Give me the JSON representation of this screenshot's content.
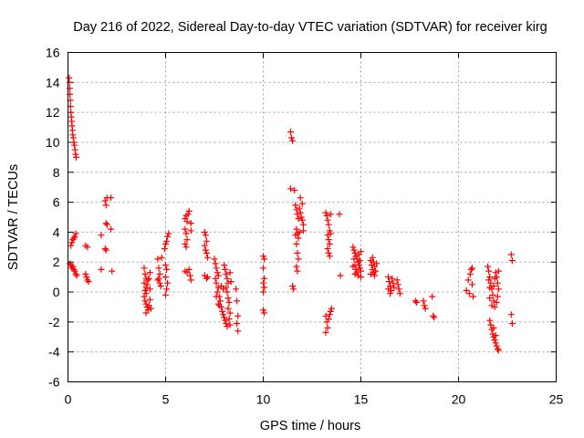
{
  "chart_data": {
    "type": "scatter",
    "title": "Day 216 of 2022, Sidereal Day-to-day VTEC variation (SDTVAR) for receiver kirg",
    "xlabel": "GPS time / hours",
    "ylabel": "SDTVAR / TECUs",
    "xlim": [
      0,
      25
    ],
    "ylim": [
      -6,
      16
    ],
    "xticks": [
      0,
      5,
      10,
      15,
      20,
      25
    ],
    "yticks": [
      -6,
      -4,
      -2,
      0,
      2,
      4,
      6,
      8,
      10,
      12,
      14,
      16
    ],
    "grid": true,
    "marker": "+",
    "color": "#ff0000",
    "series": [
      {
        "name": "SDTVAR",
        "points": [
          [
            0.05,
            14.3
          ],
          [
            0.07,
            14.0
          ],
          [
            0.09,
            13.6
          ],
          [
            0.1,
            13.2
          ],
          [
            0.12,
            12.8
          ],
          [
            0.13,
            12.4
          ],
          [
            0.15,
            12.0
          ],
          [
            0.17,
            11.7
          ],
          [
            0.19,
            11.4
          ],
          [
            0.21,
            11.1
          ],
          [
            0.23,
            10.8
          ],
          [
            0.25,
            10.5
          ],
          [
            0.27,
            10.3
          ],
          [
            0.3,
            10.0
          ],
          [
            0.33,
            9.8
          ],
          [
            0.36,
            9.5
          ],
          [
            0.39,
            9.2
          ],
          [
            0.42,
            9.0
          ],
          [
            0.15,
            3.1
          ],
          [
            0.2,
            3.3
          ],
          [
            0.25,
            3.5
          ],
          [
            0.3,
            3.6
          ],
          [
            0.35,
            3.7
          ],
          [
            0.4,
            3.9
          ],
          [
            0.1,
            1.9
          ],
          [
            0.15,
            1.8
          ],
          [
            0.2,
            1.6
          ],
          [
            0.25,
            1.7
          ],
          [
            0.3,
            1.5
          ],
          [
            0.35,
            1.4
          ],
          [
            0.4,
            1.2
          ],
          [
            0.45,
            1.1
          ],
          [
            0.9,
            3.1
          ],
          [
            1.0,
            3.0
          ],
          [
            0.9,
            1.2
          ],
          [
            0.95,
            1.0
          ],
          [
            1.0,
            0.8
          ],
          [
            1.05,
            0.7
          ],
          [
            1.7,
            3.8
          ],
          [
            1.7,
            1.5
          ],
          [
            1.9,
            6.1
          ],
          [
            1.95,
            5.8
          ],
          [
            2.0,
            6.3
          ],
          [
            1.95,
            4.6
          ],
          [
            2.0,
            4.5
          ],
          [
            1.9,
            2.9
          ],
          [
            1.95,
            2.8
          ],
          [
            2.2,
            6.3
          ],
          [
            2.2,
            4.2
          ],
          [
            2.25,
            1.4
          ],
          [
            3.9,
            1.6
          ],
          [
            3.95,
            1.2
          ],
          [
            4.0,
            0.9
          ],
          [
            3.9,
            0.6
          ],
          [
            4.0,
            0.3
          ],
          [
            3.95,
            0.1
          ],
          [
            4.0,
            -0.1
          ],
          [
            3.9,
            -0.3
          ],
          [
            4.05,
            0.5
          ],
          [
            4.1,
            0.8
          ],
          [
            3.95,
            -0.6
          ],
          [
            4.0,
            -0.8
          ],
          [
            4.05,
            -1.0
          ],
          [
            4.1,
            -1.2
          ],
          [
            4.0,
            -1.4
          ],
          [
            4.15,
            -0.9
          ],
          [
            4.2,
            -0.5
          ],
          [
            4.2,
            0.2
          ],
          [
            4.15,
            0.9
          ],
          [
            4.2,
            1.3
          ],
          [
            4.25,
            -1.1
          ],
          [
            4.6,
            2.2
          ],
          [
            4.65,
            1.6
          ],
          [
            4.7,
            1.2
          ],
          [
            4.6,
            0.8
          ],
          [
            4.7,
            0.6
          ],
          [
            4.75,
            0.4
          ],
          [
            4.65,
            0.9
          ],
          [
            4.8,
            2.3
          ],
          [
            4.95,
            2.9
          ],
          [
            5.0,
            3.2
          ],
          [
            5.05,
            3.4
          ],
          [
            5.1,
            3.7
          ],
          [
            5.15,
            3.9
          ],
          [
            5.0,
            1.8
          ],
          [
            5.05,
            1.5
          ],
          [
            5.0,
            1.0
          ],
          [
            5.1,
            0.6
          ],
          [
            5.05,
            0.2
          ],
          [
            5.0,
            -0.2
          ],
          [
            6.0,
            4.9
          ],
          [
            6.05,
            5.1
          ],
          [
            6.1,
            4.7
          ],
          [
            6.15,
            5.2
          ],
          [
            6.2,
            5.4
          ],
          [
            6.0,
            4.2
          ],
          [
            6.05,
            3.9
          ],
          [
            6.1,
            3.5
          ],
          [
            6.0,
            3.2
          ],
          [
            6.05,
            3.0
          ],
          [
            6.3,
            4.6
          ],
          [
            6.3,
            4.1
          ],
          [
            6.0,
            1.4
          ],
          [
            6.1,
            1.3
          ],
          [
            6.2,
            1.5
          ],
          [
            6.25,
            1.1
          ],
          [
            6.3,
            0.8
          ],
          [
            7.0,
            4.0
          ],
          [
            7.05,
            3.8
          ],
          [
            7.1,
            3.4
          ],
          [
            7.0,
            3.1
          ],
          [
            7.05,
            2.8
          ],
          [
            7.1,
            2.6
          ],
          [
            7.15,
            2.3
          ],
          [
            7.0,
            1.1
          ],
          [
            7.1,
            0.9
          ],
          [
            7.15,
            1.0
          ],
          [
            7.5,
            2.2
          ],
          [
            7.55,
            1.9
          ],
          [
            7.6,
            1.6
          ],
          [
            7.65,
            1.3
          ],
          [
            7.7,
            1.1
          ],
          [
            7.55,
            0.9
          ],
          [
            7.6,
            0.6
          ],
          [
            7.7,
            0.3
          ],
          [
            7.65,
            0.0
          ],
          [
            7.75,
            -0.3
          ],
          [
            7.8,
            -0.6
          ],
          [
            7.7,
            -0.8
          ],
          [
            7.85,
            -1.0
          ],
          [
            7.9,
            -1.3
          ],
          [
            7.95,
            -1.5
          ],
          [
            8.0,
            -1.7
          ],
          [
            8.05,
            -1.9
          ],
          [
            8.1,
            -2.1
          ],
          [
            8.15,
            -2.3
          ],
          [
            8.0,
            1.8
          ],
          [
            8.05,
            1.5
          ],
          [
            8.1,
            1.2
          ],
          [
            8.15,
            0.9
          ],
          [
            8.2,
            0.6
          ],
          [
            8.1,
            0.3
          ],
          [
            8.15,
            0.0
          ],
          [
            8.2,
            -0.4
          ],
          [
            8.25,
            -0.7
          ],
          [
            8.2,
            -1.1
          ],
          [
            8.3,
            -1.4
          ],
          [
            8.25,
            -1.8
          ],
          [
            8.3,
            -2.2
          ],
          [
            7.6,
            -0.3
          ],
          [
            7.75,
            -0.9
          ],
          [
            7.85,
            0.4
          ],
          [
            7.95,
            0.2
          ],
          [
            8.3,
            1.3
          ],
          [
            8.35,
            0.7
          ],
          [
            8.6,
            0.2
          ],
          [
            8.65,
            -0.6
          ],
          [
            8.7,
            -1.6
          ],
          [
            8.65,
            -2.1
          ],
          [
            8.7,
            -2.6
          ],
          [
            10.0,
            2.4
          ],
          [
            10.05,
            2.2
          ],
          [
            10.0,
            1.6
          ],
          [
            10.05,
            0.9
          ],
          [
            10.0,
            0.6
          ],
          [
            10.05,
            0.3
          ],
          [
            10.0,
            0.0
          ],
          [
            10.0,
            -1.2
          ],
          [
            10.05,
            -1.4
          ],
          [
            11.4,
            10.7
          ],
          [
            11.45,
            10.3
          ],
          [
            11.5,
            10.1
          ],
          [
            11.4,
            6.9
          ],
          [
            11.6,
            6.8
          ],
          [
            11.5,
            0.4
          ],
          [
            11.55,
            0.2
          ],
          [
            11.65,
            5.8
          ],
          [
            11.7,
            5.5
          ],
          [
            11.75,
            5.2
          ],
          [
            11.8,
            4.9
          ],
          [
            11.85,
            5.6
          ],
          [
            11.9,
            5.3
          ],
          [
            11.95,
            5.0
          ],
          [
            12.0,
            4.8
          ],
          [
            12.05,
            4.5
          ],
          [
            11.7,
            4.2
          ],
          [
            11.75,
            3.9
          ],
          [
            11.8,
            3.6
          ],
          [
            11.7,
            3.2
          ],
          [
            11.75,
            2.6
          ],
          [
            11.8,
            2.2
          ],
          [
            11.7,
            1.7
          ],
          [
            11.75,
            1.4
          ],
          [
            11.85,
            4.0
          ],
          [
            12.0,
            5.9
          ],
          [
            12.05,
            4.1
          ],
          [
            11.9,
            6.3
          ],
          [
            11.65,
            3.8
          ],
          [
            13.2,
            5.3
          ],
          [
            13.25,
            5.1
          ],
          [
            13.3,
            4.8
          ],
          [
            13.35,
            4.5
          ],
          [
            13.4,
            4.1
          ],
          [
            13.3,
            3.8
          ],
          [
            13.35,
            3.5
          ],
          [
            13.4,
            3.2
          ],
          [
            13.3,
            2.9
          ],
          [
            13.35,
            2.6
          ],
          [
            13.4,
            2.4
          ],
          [
            13.45,
            5.2
          ],
          [
            13.45,
            3.9
          ],
          [
            13.2,
            -1.6
          ],
          [
            13.25,
            -2.0
          ],
          [
            13.3,
            -2.4
          ],
          [
            13.2,
            -2.7
          ],
          [
            13.35,
            -1.8
          ],
          [
            13.4,
            -1.5
          ],
          [
            13.45,
            -1.3
          ],
          [
            13.5,
            -1.1
          ],
          [
            13.9,
            5.2
          ],
          [
            13.95,
            1.1
          ],
          [
            14.6,
            3.0
          ],
          [
            14.65,
            2.8
          ],
          [
            14.7,
            2.6
          ],
          [
            14.75,
            2.4
          ],
          [
            14.8,
            2.2
          ],
          [
            14.85,
            2.0
          ],
          [
            14.9,
            1.8
          ],
          [
            14.95,
            1.6
          ],
          [
            15.0,
            1.4
          ],
          [
            14.7,
            1.8
          ],
          [
            14.75,
            1.5
          ],
          [
            14.8,
            1.3
          ],
          [
            14.85,
            1.1
          ],
          [
            14.65,
            2.2
          ],
          [
            14.9,
            2.5
          ],
          [
            14.95,
            2.1
          ],
          [
            15.0,
            2.7
          ],
          [
            14.6,
            1.7
          ],
          [
            14.7,
            1.2
          ],
          [
            15.0,
            1.0
          ],
          [
            15.5,
            2.1
          ],
          [
            15.55,
            1.8
          ],
          [
            15.6,
            1.5
          ],
          [
            15.65,
            1.3
          ],
          [
            15.7,
            1.1
          ],
          [
            15.6,
            2.3
          ],
          [
            15.65,
            2.0
          ],
          [
            15.7,
            1.7
          ],
          [
            15.75,
            1.4
          ],
          [
            15.8,
            1.9
          ],
          [
            15.5,
            1.2
          ],
          [
            16.4,
            1.0
          ],
          [
            16.45,
            0.7
          ],
          [
            16.5,
            0.4
          ],
          [
            16.55,
            0.1
          ],
          [
            16.4,
            0.2
          ],
          [
            16.5,
            -0.1
          ],
          [
            16.6,
            0.9
          ],
          [
            16.65,
            0.6
          ],
          [
            16.7,
            0.3
          ],
          [
            16.85,
            0.8
          ],
          [
            16.9,
            0.5
          ],
          [
            16.95,
            0.2
          ],
          [
            17.0,
            -0.1
          ],
          [
            17.8,
            -0.6
          ],
          [
            17.85,
            -0.7
          ],
          [
            18.2,
            -0.6
          ],
          [
            18.25,
            -0.9
          ],
          [
            18.3,
            -1.1
          ],
          [
            18.65,
            -0.3
          ],
          [
            18.7,
            -1.6
          ],
          [
            18.75,
            -1.7
          ],
          [
            20.4,
            0.1
          ],
          [
            20.5,
            0.8
          ],
          [
            20.55,
            -0.1
          ],
          [
            20.6,
            1.2
          ],
          [
            20.65,
            1.5
          ],
          [
            20.7,
            1.6
          ],
          [
            20.7,
            0.5
          ],
          [
            20.75,
            -0.3
          ],
          [
            21.5,
            1.7
          ],
          [
            21.55,
            1.4
          ],
          [
            21.6,
            1.0
          ],
          [
            21.65,
            0.6
          ],
          [
            21.7,
            0.2
          ],
          [
            21.75,
            -0.2
          ],
          [
            21.8,
            -0.6
          ],
          [
            21.85,
            -1.0
          ],
          [
            21.7,
            -0.9
          ],
          [
            21.6,
            -0.4
          ],
          [
            21.55,
            0.8
          ],
          [
            21.6,
            0.3
          ],
          [
            21.8,
            0.4
          ],
          [
            21.85,
            0.9
          ],
          [
            21.9,
            1.3
          ],
          [
            21.95,
            1.0
          ],
          [
            22.0,
            0.6
          ],
          [
            22.05,
            0.2
          ],
          [
            22.0,
            -0.3
          ],
          [
            22.05,
            1.4
          ],
          [
            21.95,
            -0.7
          ],
          [
            21.6,
            -1.9
          ],
          [
            21.65,
            -2.2
          ],
          [
            21.7,
            -2.5
          ],
          [
            21.75,
            -2.8
          ],
          [
            21.8,
            -3.0
          ],
          [
            21.85,
            -3.2
          ],
          [
            21.9,
            -3.4
          ],
          [
            21.95,
            -3.6
          ],
          [
            22.0,
            -3.8
          ],
          [
            22.05,
            -3.9
          ],
          [
            21.8,
            -2.4
          ],
          [
            21.9,
            -2.9
          ],
          [
            22.7,
            2.5
          ],
          [
            22.75,
            2.1
          ],
          [
            22.7,
            -1.5
          ],
          [
            22.75,
            -2.1
          ]
        ]
      }
    ]
  }
}
